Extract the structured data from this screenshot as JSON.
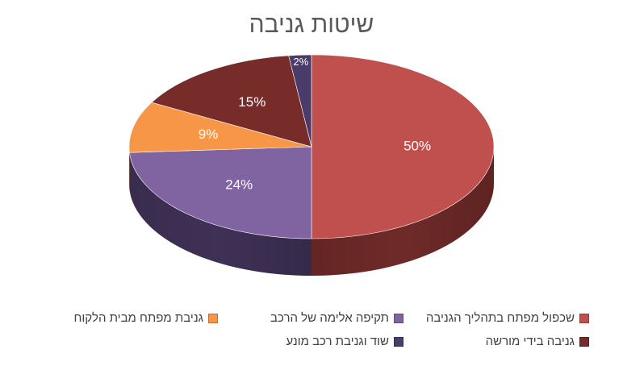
{
  "chart_data": {
    "type": "pie",
    "title": "שיטות גניבה",
    "legend_position": "bottom",
    "slices": [
      {
        "label": "שכפול מפתח בתהליך הגניבה",
        "value": 50,
        "display": "50%",
        "color": "#C0504D",
        "side": "#6E2A28"
      },
      {
        "label": "תקיפה אלימה של הרכב",
        "value": 24,
        "display": "24%",
        "color": "#8064A2",
        "side": "#3F3156"
      },
      {
        "label": "גניבת מפתח מבית הלקוח",
        "value": 9,
        "display": "9%",
        "color": "#F79646",
        "side": "#A55F22"
      },
      {
        "label": "גניבה בידי מורשה",
        "value": 15,
        "display": "15%",
        "color": "#772C2A",
        "side": "#3A1312"
      },
      {
        "label": "שוד וגניבת רכב מונע",
        "value": 2,
        "display": "2%",
        "color": "#4B3B6B",
        "side": "#241B36"
      }
    ]
  }
}
